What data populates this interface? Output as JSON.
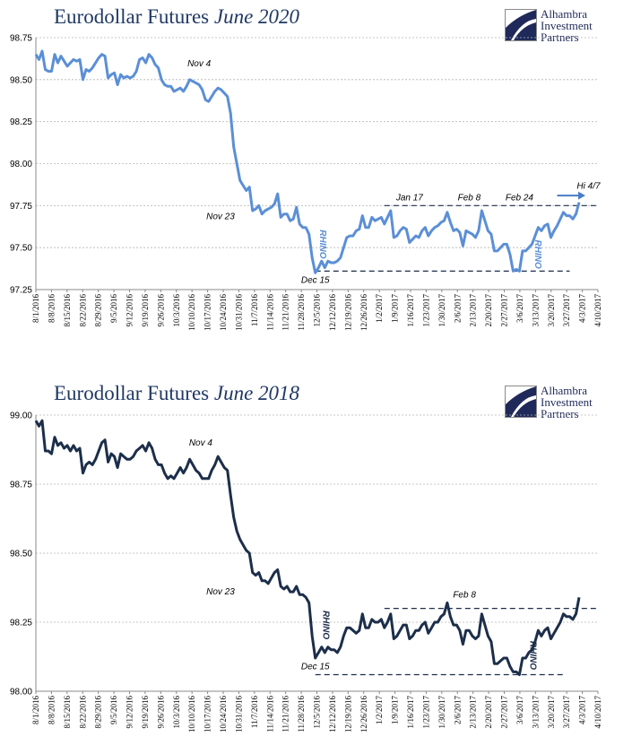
{
  "chart_data": [
    {
      "type": "line",
      "title_main": "Eurodollar Futures",
      "title_italic": "June 2020",
      "logo": [
        "Alhambra",
        "Investment",
        "Partners"
      ],
      "color": "#5b8fd6",
      "ylim": [
        97.25,
        98.75
      ],
      "yticks": [
        "98.75",
        "98.50",
        "98.25",
        "98.00",
        "97.75",
        "97.50",
        "97.25"
      ],
      "ytick_values": [
        98.75,
        98.5,
        98.25,
        98.0,
        97.75,
        97.5,
        97.25
      ],
      "x_labels": [
        "8/1/2016",
        "8/8/2016",
        "8/15/2016",
        "8/22/2016",
        "8/29/2016",
        "9/5/2016",
        "9/12/2016",
        "9/19/2016",
        "9/26/2016",
        "10/3/2016",
        "10/10/2016",
        "10/17/2016",
        "10/24/2016",
        "10/31/2016",
        "11/7/2016",
        "11/14/2016",
        "11/21/2016",
        "11/28/2016",
        "12/5/2016",
        "12/12/2016",
        "12/19/2016",
        "12/26/2016",
        "1/2/2017",
        "1/9/2017",
        "1/16/2017",
        "1/23/2017",
        "1/30/2017",
        "2/6/2017",
        "2/13/2017",
        "2/20/2017",
        "2/27/2017",
        "3/6/2017",
        "3/13/2017",
        "3/20/2017",
        "3/27/2017",
        "4/3/2017",
        "4/10/2017"
      ],
      "x_index_range": [
        0,
        179
      ],
      "series": [
        {
          "values": [
            98.65,
            98.62,
            98.67,
            98.56,
            98.55,
            98.55,
            98.65,
            98.6,
            98.64,
            98.61,
            98.58,
            98.6,
            98.62,
            98.61,
            98.62,
            98.5,
            98.56,
            98.55,
            98.57,
            98.6,
            98.63,
            98.65,
            98.64,
            98.51,
            98.53,
            98.54,
            98.47,
            98.53,
            98.51,
            98.52,
            98.51,
            98.52,
            98.55,
            98.62,
            98.63,
            98.6,
            98.65,
            98.63,
            98.59,
            98.57,
            98.5,
            98.47,
            98.46,
            98.46,
            98.43,
            98.44,
            98.45,
            98.43,
            98.46,
            98.5,
            98.49,
            98.48,
            98.47,
            98.44,
            98.38,
            98.37,
            98.4,
            98.43,
            98.45,
            98.44,
            98.42,
            98.4,
            98.3,
            98.1,
            98.0,
            97.9,
            97.87,
            97.84,
            97.86,
            97.72,
            97.73,
            97.75,
            97.7,
            97.72,
            97.73,
            97.74,
            97.76,
            97.82,
            97.68,
            97.7,
            97.7,
            97.66,
            97.67,
            97.74,
            97.64,
            97.62,
            97.62,
            97.58,
            97.44,
            97.35,
            97.38,
            97.42,
            97.38,
            97.42,
            97.41,
            97.41,
            97.42,
            97.44,
            97.5,
            97.56,
            97.57,
            97.57,
            97.6,
            97.61,
            97.69,
            97.62,
            97.62,
            97.68,
            97.66,
            97.67,
            97.68,
            97.64,
            97.68,
            97.72,
            97.56,
            97.57,
            97.6,
            97.62,
            97.61,
            97.53,
            97.55,
            97.57,
            97.56,
            97.6,
            97.62,
            97.57,
            97.6,
            97.62,
            97.63,
            97.65,
            97.66,
            97.71,
            97.65,
            97.6,
            97.61,
            97.59,
            97.51,
            97.6,
            97.59,
            97.58,
            97.56,
            97.6,
            97.72,
            97.66,
            97.6,
            97.58,
            97.48,
            97.48,
            97.5,
            97.52,
            97.52,
            97.46,
            97.36,
            97.37,
            97.36,
            97.48,
            97.48,
            97.5,
            97.52,
            97.57,
            97.62,
            97.6,
            97.63,
            97.64,
            97.56,
            97.6,
            97.63,
            97.67,
            97.71,
            97.69,
            97.69,
            97.67,
            97.7,
            97.77
          ]
        }
      ],
      "annotations": [
        {
          "text": "Nov 4",
          "x": 52,
          "y": 98.58
        },
        {
          "text": "Nov 23",
          "x": 58.8,
          "y": 97.67
        },
        {
          "text": "Dec 15",
          "x": 89,
          "y": 97.29
        },
        {
          "text": "Jan 17",
          "x": 119,
          "y": 97.78
        },
        {
          "text": "Feb 8",
          "x": 138,
          "y": 97.78
        },
        {
          "text": "Feb 24",
          "x": 154,
          "y": 97.78
        },
        {
          "text": "Hi 4/7",
          "x": 176,
          "y": 97.85
        }
      ],
      "rhino_labels": [
        {
          "text": "RHINO",
          "x": 90.5,
          "y": 97.52
        },
        {
          "text": "RHINO",
          "x": 159,
          "y": 97.46
        }
      ],
      "dashed_lines": [
        {
          "y": 97.75,
          "x_from": 111,
          "x_to": 179
        },
        {
          "y": 97.36,
          "x_from": 89,
          "x_to": 170
        }
      ],
      "arrow": {
        "y": 97.81,
        "x_from": 166,
        "x_to": 175
      }
    },
    {
      "type": "line",
      "title_main": "Eurodollar Futures",
      "title_italic": "June 2018",
      "logo": [
        "Alhambra",
        "Investment",
        "Partners"
      ],
      "color": "#1c2e4a",
      "ylim": [
        98.0,
        99.0
      ],
      "yticks": [
        "99.00",
        "98.75",
        "98.50",
        "98.25",
        "98.00"
      ],
      "ytick_values": [
        99.0,
        98.75,
        98.5,
        98.25,
        98.0
      ],
      "x_labels": [
        "8/1/2016",
        "8/8/2016",
        "8/15/2016",
        "8/22/2016",
        "8/29/2016",
        "9/5/2016",
        "9/12/2016",
        "9/19/2016",
        "9/26/2016",
        "10/3/2016",
        "10/10/2016",
        "10/17/2016",
        "10/24/2016",
        "10/31/2016",
        "11/7/2016",
        "11/14/2016",
        "11/21/2016",
        "11/28/2016",
        "12/5/2016",
        "12/12/2016",
        "12/19/2016",
        "12/26/2016",
        "1/2/2017",
        "1/9/2017",
        "1/16/2017",
        "1/23/2017",
        "1/30/2017",
        "2/6/2017",
        "2/13/2017",
        "2/20/2017",
        "2/27/2017",
        "3/6/2017",
        "3/13/2017",
        "3/20/2017",
        "3/27/2017",
        "4/3/2017",
        "4/10/2017"
      ],
      "x_index_range": [
        0,
        179
      ],
      "series": [
        {
          "values": [
            98.98,
            98.96,
            98.98,
            98.87,
            98.87,
            98.86,
            98.92,
            98.89,
            98.9,
            98.88,
            98.89,
            98.87,
            98.89,
            98.87,
            98.88,
            98.79,
            98.82,
            98.83,
            98.82,
            98.84,
            98.87,
            98.9,
            98.91,
            98.83,
            98.86,
            98.85,
            98.81,
            98.86,
            98.85,
            98.84,
            98.84,
            98.85,
            98.87,
            98.88,
            98.89,
            98.87,
            98.9,
            98.88,
            98.84,
            98.82,
            98.82,
            98.79,
            98.77,
            98.78,
            98.77,
            98.79,
            98.81,
            98.79,
            98.81,
            98.84,
            98.82,
            98.8,
            98.79,
            98.77,
            98.77,
            98.77,
            98.8,
            98.82,
            98.85,
            98.83,
            98.81,
            98.8,
            98.71,
            98.63,
            98.58,
            98.55,
            98.53,
            98.51,
            98.5,
            98.43,
            98.42,
            98.43,
            98.4,
            98.4,
            98.39,
            98.41,
            98.43,
            98.44,
            98.38,
            98.37,
            98.38,
            98.36,
            98.36,
            98.38,
            98.35,
            98.35,
            98.34,
            98.32,
            98.2,
            98.12,
            98.14,
            98.16,
            98.14,
            98.16,
            98.15,
            98.15,
            98.14,
            98.16,
            98.2,
            98.23,
            98.23,
            98.22,
            98.21,
            98.22,
            98.28,
            98.23,
            98.23,
            98.26,
            98.25,
            98.25,
            98.26,
            98.23,
            98.25,
            98.28,
            98.19,
            98.2,
            98.22,
            98.24,
            98.24,
            98.19,
            98.2,
            98.22,
            98.22,
            98.24,
            98.25,
            98.21,
            98.23,
            98.25,
            98.25,
            98.27,
            98.28,
            98.32,
            98.27,
            98.24,
            98.24,
            98.22,
            98.17,
            98.22,
            98.22,
            98.2,
            98.19,
            98.2,
            98.28,
            98.24,
            98.2,
            98.18,
            98.1,
            98.1,
            98.11,
            98.12,
            98.12,
            98.09,
            98.07,
            98.07,
            98.06,
            98.12,
            98.12,
            98.14,
            98.15,
            98.18,
            98.22,
            98.2,
            98.22,
            98.23,
            98.19,
            98.21,
            98.23,
            98.25,
            98.28,
            98.27,
            98.27,
            98.26,
            98.28,
            98.34
          ]
        }
      ],
      "annotations": [
        {
          "text": "Nov 4",
          "x": 52.5,
          "y": 98.89
        },
        {
          "text": "Nov 23",
          "x": 58.8,
          "y": 98.35
        },
        {
          "text": "Dec 15",
          "x": 89,
          "y": 98.08
        },
        {
          "text": "Feb 8",
          "x": 136.5,
          "y": 98.34
        }
      ],
      "rhino_labels": [
        {
          "text": "RHINO",
          "x": 91.5,
          "y": 98.24
        },
        {
          "text": "RHINO",
          "x": 157.5,
          "y": 98.13
        }
      ],
      "dashed_lines": [
        {
          "y": 98.3,
          "x_from": 111,
          "x_to": 179
        },
        {
          "y": 98.06,
          "x_from": 89,
          "x_to": 168
        }
      ]
    }
  ]
}
